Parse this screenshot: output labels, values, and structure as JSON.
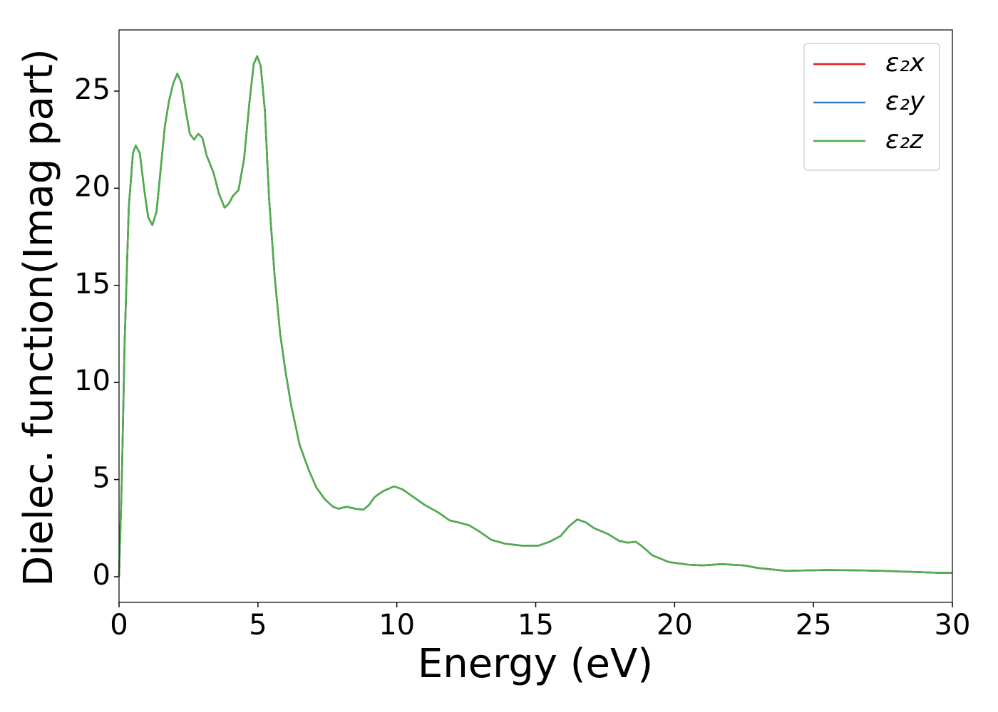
{
  "chart_data": {
    "type": "line",
    "xlabel": "Energy (eV)",
    "ylabel": "Dielec. function(Imag part)",
    "x": [
      0,
      0.1,
      0.2,
      0.35,
      0.5,
      0.6,
      0.75,
      0.9,
      1.05,
      1.2,
      1.35,
      1.5,
      1.65,
      1.8,
      1.95,
      2.1,
      2.25,
      2.4,
      2.55,
      2.7,
      2.85,
      3.0,
      3.15,
      3.4,
      3.6,
      3.8,
      3.95,
      4.1,
      4.3,
      4.5,
      4.7,
      4.85,
      4.97,
      5.1,
      5.25,
      5.4,
      5.6,
      5.8,
      6.0,
      6.2,
      6.5,
      6.8,
      7.1,
      7.4,
      7.7,
      7.9,
      8.2,
      8.5,
      8.8,
      9.0,
      9.2,
      9.5,
      9.9,
      10.2,
      10.6,
      11.0,
      11.5,
      11.9,
      12.2,
      12.6,
      13.0,
      13.4,
      13.9,
      14.5,
      15.1,
      15.5,
      15.9,
      16.2,
      16.5,
      16.8,
      17.1,
      17.6,
      18.0,
      18.3,
      18.6,
      18.8,
      19.2,
      19.8,
      20.5,
      21.0,
      21.7,
      22.5,
      23.0,
      24.0,
      25.5,
      26.5,
      27.5,
      28.5,
      29.5,
      30
    ],
    "series": [
      {
        "name": "ε₂x",
        "color": "#e41a1c",
        "values": [
          0,
          5,
          12,
          19,
          21.8,
          22.2,
          21.8,
          20,
          18.5,
          18.1,
          18.8,
          21,
          23.2,
          24.5,
          25.4,
          25.9,
          25.4,
          24,
          22.8,
          22.5,
          22.8,
          22.6,
          21.7,
          20.8,
          19.7,
          19.0,
          19.2,
          19.6,
          19.9,
          21.5,
          24.5,
          26.4,
          26.8,
          26.3,
          24,
          19.5,
          15.5,
          12.5,
          10.5,
          8.8,
          6.8,
          5.6,
          4.6,
          4.0,
          3.6,
          3.5,
          3.6,
          3.5,
          3.45,
          3.7,
          4.1,
          4.4,
          4.65,
          4.5,
          4.1,
          3.7,
          3.3,
          2.9,
          2.8,
          2.65,
          2.3,
          1.9,
          1.7,
          1.6,
          1.6,
          1.8,
          2.1,
          2.6,
          2.95,
          2.8,
          2.5,
          2.2,
          1.85,
          1.75,
          1.8,
          1.6,
          1.1,
          0.75,
          0.62,
          0.58,
          0.65,
          0.58,
          0.45,
          0.3,
          0.35,
          0.33,
          0.3,
          0.25,
          0.2,
          0.2
        ]
      },
      {
        "name": "ε₂y",
        "color": "#377eb8",
        "values": [
          0,
          5,
          12,
          19,
          21.8,
          22.2,
          21.8,
          20,
          18.5,
          18.1,
          18.8,
          21,
          23.2,
          24.5,
          25.4,
          25.9,
          25.4,
          24,
          22.8,
          22.5,
          22.8,
          22.6,
          21.7,
          20.8,
          19.7,
          19.0,
          19.2,
          19.6,
          19.9,
          21.5,
          24.5,
          26.4,
          26.8,
          26.3,
          24,
          19.5,
          15.5,
          12.5,
          10.5,
          8.8,
          6.8,
          5.6,
          4.6,
          4.0,
          3.6,
          3.5,
          3.6,
          3.5,
          3.45,
          3.7,
          4.1,
          4.4,
          4.65,
          4.5,
          4.1,
          3.7,
          3.3,
          2.9,
          2.8,
          2.65,
          2.3,
          1.9,
          1.7,
          1.6,
          1.6,
          1.8,
          2.1,
          2.6,
          2.95,
          2.8,
          2.5,
          2.2,
          1.85,
          1.75,
          1.8,
          1.6,
          1.1,
          0.75,
          0.62,
          0.58,
          0.65,
          0.58,
          0.45,
          0.3,
          0.35,
          0.33,
          0.3,
          0.25,
          0.2,
          0.2
        ]
      },
      {
        "name": "ε₂z",
        "color": "#4daf4a",
        "values": [
          0,
          5,
          12,
          19,
          21.8,
          22.2,
          21.8,
          20,
          18.5,
          18.1,
          18.8,
          21,
          23.2,
          24.5,
          25.4,
          25.9,
          25.4,
          24,
          22.8,
          22.5,
          22.8,
          22.6,
          21.7,
          20.8,
          19.7,
          19.0,
          19.2,
          19.6,
          19.9,
          21.5,
          24.5,
          26.4,
          26.8,
          26.3,
          24,
          19.5,
          15.5,
          12.5,
          10.5,
          8.8,
          6.8,
          5.6,
          4.6,
          4.0,
          3.6,
          3.5,
          3.6,
          3.5,
          3.45,
          3.7,
          4.1,
          4.4,
          4.65,
          4.5,
          4.1,
          3.7,
          3.3,
          2.9,
          2.8,
          2.65,
          2.3,
          1.9,
          1.7,
          1.6,
          1.6,
          1.8,
          2.1,
          2.6,
          2.95,
          2.8,
          2.5,
          2.2,
          1.85,
          1.75,
          1.8,
          1.6,
          1.1,
          0.75,
          0.62,
          0.58,
          0.65,
          0.58,
          0.45,
          0.3,
          0.35,
          0.33,
          0.3,
          0.25,
          0.2,
          0.2
        ]
      }
    ],
    "xlim": [
      0,
      30
    ],
    "xticks": [
      0,
      5,
      10,
      15,
      20,
      25,
      30
    ],
    "ylim": [
      -1.32,
      28.15
    ],
    "yticks": [
      0,
      5,
      10,
      15,
      20,
      25
    ],
    "grid": false,
    "legend": "upper right"
  }
}
